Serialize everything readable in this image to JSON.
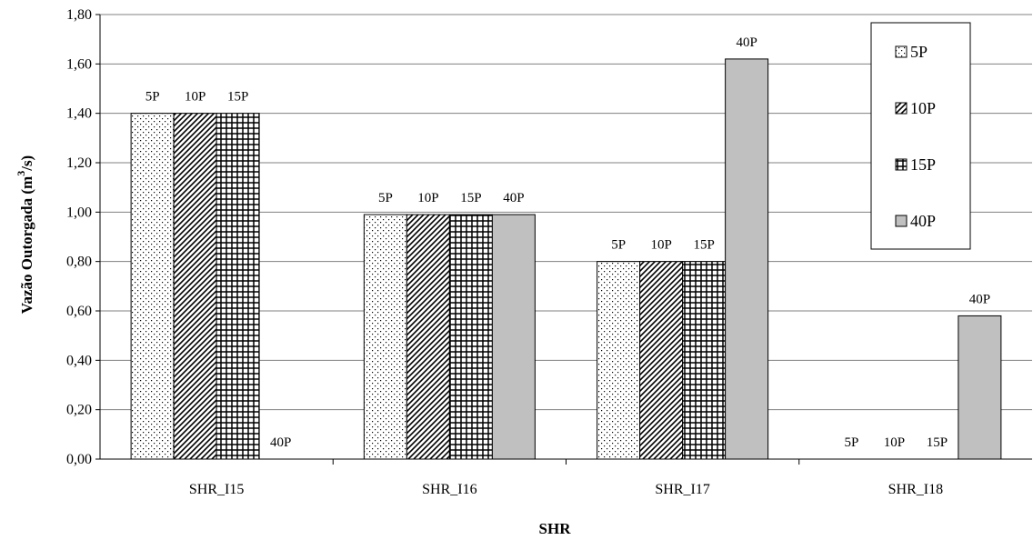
{
  "chart_data": {
    "type": "bar",
    "categories": [
      "SHR_I15",
      "SHR_I16",
      "SHR_I17",
      "SHR_I18"
    ],
    "series": [
      {
        "name": "5P",
        "values": [
          1.4,
          0.99,
          0.8,
          0.0
        ],
        "pattern": "dots",
        "color": "#ffffff"
      },
      {
        "name": "10P",
        "values": [
          1.4,
          0.99,
          0.8,
          0.0
        ],
        "pattern": "diagonal",
        "color": "#ffffff"
      },
      {
        "name": "15P",
        "values": [
          1.4,
          0.99,
          0.8,
          0.0
        ],
        "pattern": "grid",
        "color": "#ffffff"
      },
      {
        "name": "40P",
        "values": [
          0.0,
          0.99,
          1.62,
          0.58
        ],
        "pattern": "solid",
        "color": "#c0c0c0"
      }
    ],
    "data_labels": [
      [
        "5P",
        "10P",
        "15P",
        "40P"
      ],
      [
        "5P",
        "10P",
        "15P",
        "40P"
      ],
      [
        "5P",
        "10P",
        "15P",
        "40P"
      ],
      [
        "5P",
        "10P",
        "15P",
        "40P"
      ]
    ],
    "title": "",
    "xlabel": "SHR",
    "ylabel_main": "Vazão Outorgada (m",
    "ylabel_sup": "3",
    "ylabel_end": "/s)",
    "ylim": [
      0,
      1.8
    ],
    "yticks": [
      "0,00",
      "0,20",
      "0,40",
      "0,60",
      "0,80",
      "1,00",
      "1,20",
      "1,40",
      "1,60",
      "1,80"
    ],
    "grid": true,
    "legend_position": "top-right"
  }
}
